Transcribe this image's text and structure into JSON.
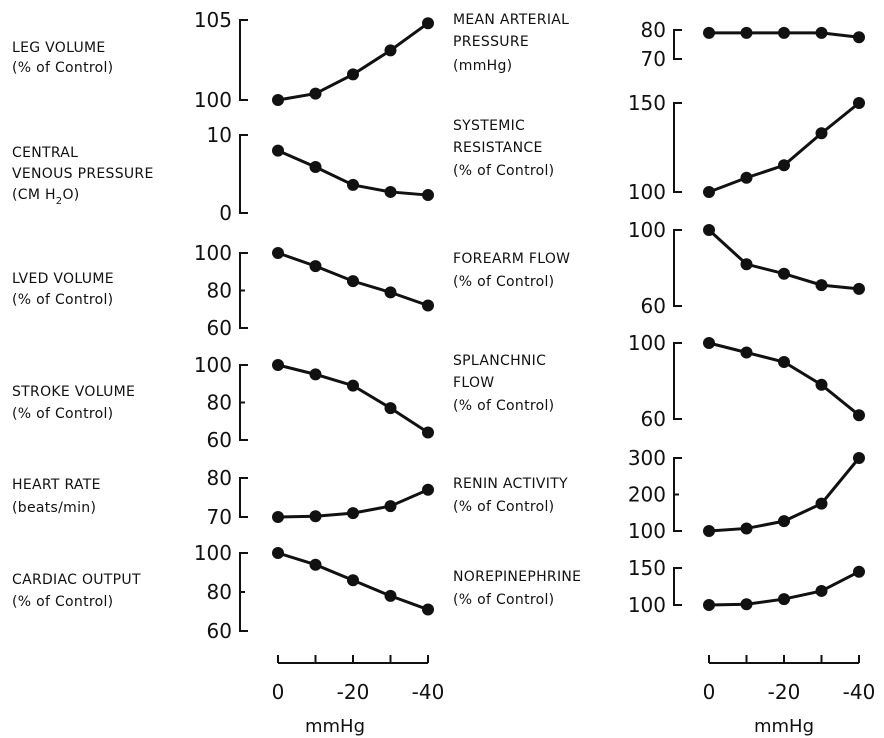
{
  "chart_data": [
    {
      "type": "line",
      "label": [
        "LEG VOLUME",
        "(% of Control)"
      ],
      "ticks": [
        "105",
        "100"
      ],
      "ylim": [
        100,
        105
      ],
      "x": [
        0,
        -10,
        -20,
        -30,
        -40
      ],
      "y": [
        100,
        100.4,
        101.6,
        103.1,
        104.8
      ]
    },
    {
      "type": "line",
      "label": [
        "CENTRAL",
        "VENOUS PRESSURE",
        "(CM H2O)"
      ],
      "ticks": [
        "10",
        "0"
      ],
      "ylim": [
        0,
        10
      ],
      "x": [
        0,
        -10,
        -20,
        -30,
        -40
      ],
      "y": [
        8,
        5.9,
        3.6,
        2.7,
        2.3
      ]
    },
    {
      "type": "line",
      "label": [
        "LVED VOLUME",
        "(% of Control)"
      ],
      "ticks": [
        "100",
        "80",
        "60"
      ],
      "ylim": [
        60,
        100
      ],
      "x": [
        0,
        -10,
        -20,
        -30,
        -40
      ],
      "y": [
        100,
        93,
        85,
        79,
        72
      ]
    },
    {
      "type": "line",
      "label": [
        "STROKE VOLUME",
        "(% of Control)"
      ],
      "ticks": [
        "100",
        "80",
        "60"
      ],
      "ylim": [
        60,
        100
      ],
      "x": [
        0,
        -10,
        -20,
        -30,
        -40
      ],
      "y": [
        100,
        95,
        89,
        77,
        64
      ]
    },
    {
      "type": "line",
      "label": [
        "HEART RATE",
        "(beats/min)"
      ],
      "ticks": [
        "80",
        "70"
      ],
      "ylim": [
        70,
        80
      ],
      "x": [
        0,
        -10,
        -20,
        -30,
        -40
      ],
      "y": [
        70,
        70.2,
        71,
        72.8,
        77
      ]
    },
    {
      "type": "line",
      "label": [
        "CARDIAC OUTPUT",
        "(% of Control)"
      ],
      "ticks": [
        "100",
        "80",
        "60"
      ],
      "ylim": [
        60,
        100
      ],
      "x": [
        0,
        -10,
        -20,
        -30,
        -40
      ],
      "y": [
        100,
        94,
        86,
        78,
        71
      ]
    },
    {
      "type": "line",
      "label": [
        "MEAN ARTERIAL",
        "PRESSURE",
        "(mmHg)"
      ],
      "ticks": [
        "80",
        "70"
      ],
      "ylim": [
        70,
        80
      ],
      "x": [
        0,
        -10,
        -20,
        -30,
        -40
      ],
      "y": [
        79,
        79,
        79,
        79,
        77.5
      ]
    },
    {
      "type": "line",
      "label": [
        "SYSTEMIC",
        "RESISTANCE",
        "(% of Control)"
      ],
      "ticks": [
        "150",
        "100"
      ],
      "ylim": [
        100,
        150
      ],
      "x": [
        0,
        -10,
        -20,
        -30,
        -40
      ],
      "y": [
        100,
        108,
        115,
        133,
        150
      ]
    },
    {
      "type": "line",
      "label": [
        "FOREARM FLOW",
        "(% of Control)"
      ],
      "ticks": [
        "100",
        "60"
      ],
      "ylim": [
        60,
        100
      ],
      "x": [
        0,
        -10,
        -20,
        -30,
        -40
      ],
      "y": [
        100,
        82,
        77,
        71,
        69
      ]
    },
    {
      "type": "line",
      "label": [
        "SPLANCHNIC",
        "FLOW",
        "(% of Control)"
      ],
      "ticks": [
        "100",
        "60"
      ],
      "ylim": [
        60,
        100
      ],
      "x": [
        0,
        -10,
        -20,
        -30,
        -40
      ],
      "y": [
        100,
        95,
        90,
        78,
        62
      ]
    },
    {
      "type": "line",
      "label": [
        "RENIN ACTIVITY",
        "(% of Control)"
      ],
      "ticks": [
        "300",
        "200",
        "100"
      ],
      "ylim": [
        100,
        300
      ],
      "x": [
        0,
        -10,
        -20,
        -30,
        -40
      ],
      "y": [
        100,
        107,
        127,
        175,
        300
      ]
    },
    {
      "type": "line",
      "label": [
        "NOREPINEPHRINE",
        "(% of Control)"
      ],
      "ticks": [
        "150",
        "100"
      ],
      "ylim": [
        100,
        150
      ],
      "x": [
        0,
        -10,
        -20,
        -30,
        -40
      ],
      "y": [
        100,
        101,
        108,
        119,
        145
      ]
    }
  ],
  "x_axes": [
    {
      "ticks": [
        "0",
        "-20",
        "-40"
      ],
      "unit": "mmHg"
    },
    {
      "ticks": [
        "0",
        "-20",
        "-40"
      ],
      "unit": "mmHg"
    }
  ]
}
